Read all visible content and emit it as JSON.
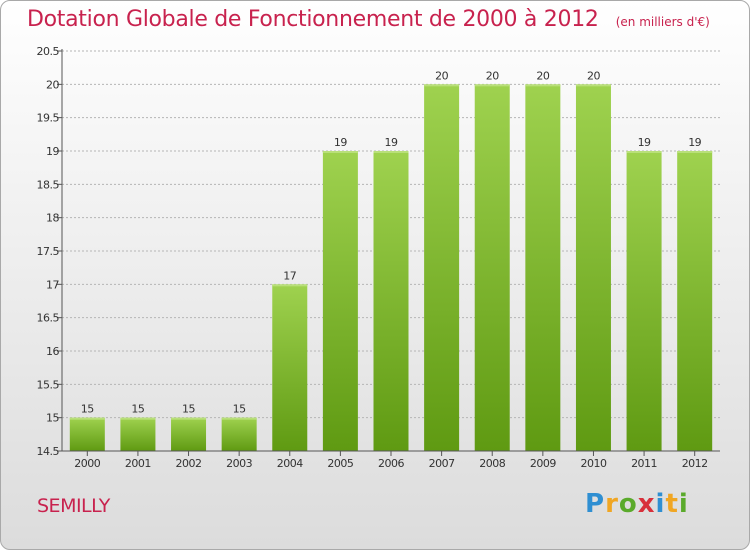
{
  "header": {
    "title": "Dotation Globale de Fonctionnement de 2000 à 2012",
    "unit": "(en milliers d'€)"
  },
  "footer": {
    "commune": "SEMILLY",
    "brand_letters": [
      "P",
      "r",
      "o",
      "x",
      "i",
      "t",
      "i"
    ],
    "brand_colors": [
      "#2f8fd2",
      "#f0a623",
      "#5aaa2b",
      "#d8303b",
      "#2f8fd2",
      "#f0a623",
      "#5aaa2b"
    ]
  },
  "colors": {
    "bar_top": "#9fd24f",
    "bar_bottom": "#5f9a12",
    "axis": "#555555",
    "grid": "#b5b5b5",
    "text": "#333333"
  },
  "chart_data": {
    "type": "bar",
    "title": "Dotation Globale de Fonctionnement de 2000 à 2012",
    "subtitle": "(en milliers d'€)",
    "xlabel": "",
    "ylabel": "",
    "categories": [
      "2000",
      "2001",
      "2002",
      "2003",
      "2004",
      "2005",
      "2006",
      "2007",
      "2008",
      "2009",
      "2010",
      "2011",
      "2012"
    ],
    "values": [
      15,
      15,
      15,
      15,
      17,
      19,
      19,
      20,
      20,
      20,
      20,
      19,
      19
    ],
    "data_labels": [
      "15",
      "15",
      "15",
      "15",
      "17",
      "19",
      "19",
      "20",
      "20",
      "20",
      "20",
      "19",
      "19"
    ],
    "ylim": [
      14.5,
      20.5
    ],
    "yticks": [
      14.5,
      15,
      15.5,
      16,
      16.5,
      17,
      17.5,
      18,
      18.5,
      19,
      19.5,
      20,
      20.5
    ],
    "ytick_labels": [
      "14.5",
      "15",
      "15.5",
      "16",
      "16.5",
      "17",
      "17.5",
      "18",
      "18.5",
      "19",
      "19.5",
      "20",
      "20.5"
    ],
    "grid": true
  }
}
